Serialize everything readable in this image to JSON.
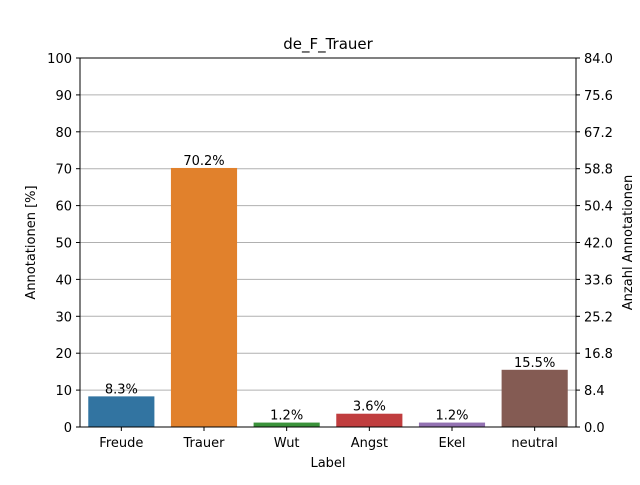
{
  "chart_data": {
    "type": "bar",
    "title": "de_F_Trauer",
    "xlabel": "Label",
    "ylabel": "Annotationen [%]",
    "y2label": "Anzahl Annotationen",
    "categories": [
      "Freude",
      "Trauer",
      "Wut",
      "Angst",
      "Ekel",
      "neutral"
    ],
    "values": [
      8.3,
      70.2,
      1.2,
      3.6,
      1.2,
      15.5
    ],
    "data_labels": [
      "8.3%",
      "70.2%",
      "1.2%",
      "3.6%",
      "1.2%",
      "15.5%"
    ],
    "colors": [
      "#3274a1",
      "#e1812c",
      "#3a923a",
      "#c03d3e",
      "#9372b2",
      "#845b53"
    ],
    "ylim": [
      0,
      100
    ],
    "yticks": [
      "0",
      "10",
      "20",
      "30",
      "40",
      "50",
      "60",
      "70",
      "80",
      "90",
      "100"
    ],
    "y2lim": [
      0,
      84
    ],
    "y2ticks": [
      "0.0",
      "8.4",
      "16.8",
      "25.2",
      "33.6",
      "42.0",
      "50.4",
      "58.8",
      "67.2",
      "75.6",
      "84.0"
    ],
    "grid": true,
    "grid_color": "#b0b0b0"
  }
}
